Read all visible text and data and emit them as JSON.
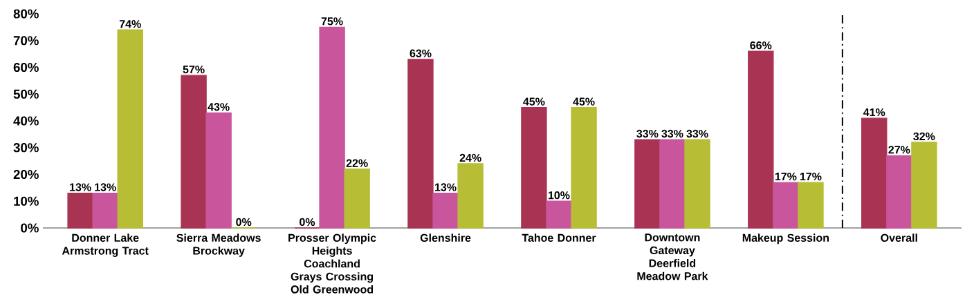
{
  "chart_data": {
    "type": "bar",
    "categories": [
      "Donner Lake Armstrong Tract",
      "Sierra Meadows Brockway",
      "Prosser Olympic Heights Coachland Grays Crossing Old Greenwood",
      "Glenshire",
      "Tahoe Donner",
      "Downtown Gateway Deerfield Meadow Park",
      "Makeup Session",
      "Overall"
    ],
    "series": [
      {
        "color": "#a93352",
        "values": [
          13,
          57,
          0,
          63,
          45,
          33,
          66,
          41
        ],
        "value_labels": [
          "13%",
          "57%",
          "0%",
          "63%",
          "45%",
          "33%",
          "66%",
          "41%"
        ]
      },
      {
        "color": "#c9569c",
        "values": [
          13,
          43,
          75,
          13,
          10,
          33,
          17,
          27
        ],
        "value_labels": [
          "13%",
          "43%",
          "75%",
          "13%",
          "10%",
          "33%",
          "17%",
          "27%"
        ]
      },
      {
        "color": "#b7bd35",
        "values": [
          74,
          0,
          22,
          24,
          45,
          33,
          17,
          32
        ],
        "value_labels": [
          "74%",
          "0%",
          "22%",
          "24%",
          "45%",
          "33%",
          "17%",
          "32%"
        ]
      }
    ],
    "ylim": [
      0,
      80
    ],
    "yticks": [
      {
        "value": 0,
        "label": "0%"
      },
      {
        "value": 10,
        "label": "10%"
      },
      {
        "value": 20,
        "label": "20%"
      },
      {
        "value": 30,
        "label": "30%"
      },
      {
        "value": 40,
        "label": "40%"
      },
      {
        "value": 50,
        "label": "50%"
      },
      {
        "value": 60,
        "label": "60%"
      },
      {
        "value": 70,
        "label": "70%"
      },
      {
        "value": 80,
        "label": "80%"
      }
    ]
  }
}
